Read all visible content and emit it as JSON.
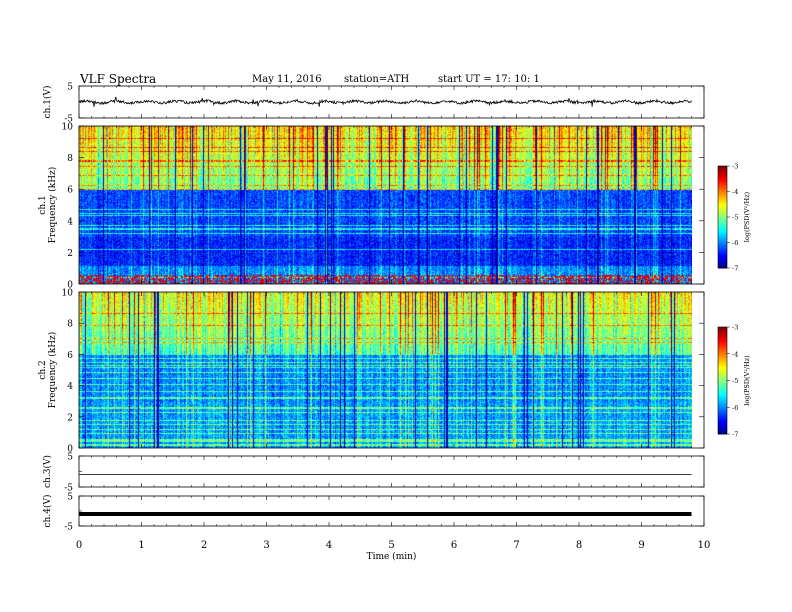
{
  "header": {
    "title": "VLF  Spectra",
    "date": "May 11, 2016",
    "station": "station=ATH",
    "start": "start  UT  =    17: 10: 1"
  },
  "chart_data": [
    {
      "name": "ch1-waveform",
      "type": "line",
      "ylabel": "ch.1(V)",
      "ylim": [
        -5,
        5
      ],
      "yticks": [
        "5",
        "-5"
      ],
      "x_range_min": [
        0,
        9.8
      ],
      "series_description": "noisy waveform around 0 V, amplitude about ±1 V with occasional spikes"
    },
    {
      "name": "ch1-spectrogram",
      "type": "heatmap",
      "ylabel": "ch.1\nFrequency  (kHz)",
      "ylim": [
        0,
        10
      ],
      "yticks": [
        "0",
        "2",
        "4",
        "6",
        "8",
        "10"
      ],
      "colorbar": {
        "label": "log(PSD(V²/Hz)",
        "range": [
          -7,
          -3
        ],
        "ticks": [
          "-3",
          "-4",
          "-5",
          "-6",
          "-7"
        ]
      }
    },
    {
      "name": "ch2-spectrogram",
      "type": "heatmap",
      "ylabel": "ch.2\nFrequency  (kHz)",
      "ylim": [
        0,
        10
      ],
      "yticks": [
        "0",
        "2",
        "4",
        "6",
        "8",
        "10"
      ],
      "colorbar": {
        "label": "log(PSD(V²/Hz)",
        "range": [
          -7,
          -3
        ],
        "ticks": [
          "-3",
          "-4",
          "-5",
          "-6",
          "-7"
        ]
      }
    },
    {
      "name": "ch3-waveform",
      "type": "line",
      "ylabel": "ch.3(V)",
      "ylim": [
        -5,
        5
      ],
      "yticks": [
        "5",
        "-5"
      ],
      "series_description": "flat line near -1 V"
    },
    {
      "name": "ch4-waveform",
      "type": "line",
      "ylabel": "ch.4(V)",
      "ylim": [
        -5,
        5
      ],
      "yticks": [
        "5",
        "-5"
      ],
      "series_description": "thick flat line near -1 V"
    }
  ],
  "xaxis": {
    "label": "Time  (min)",
    "range": [
      0,
      10
    ],
    "ticks": [
      "0",
      "1",
      "2",
      "3",
      "4",
      "5",
      "6",
      "7",
      "8",
      "9",
      "10"
    ]
  }
}
